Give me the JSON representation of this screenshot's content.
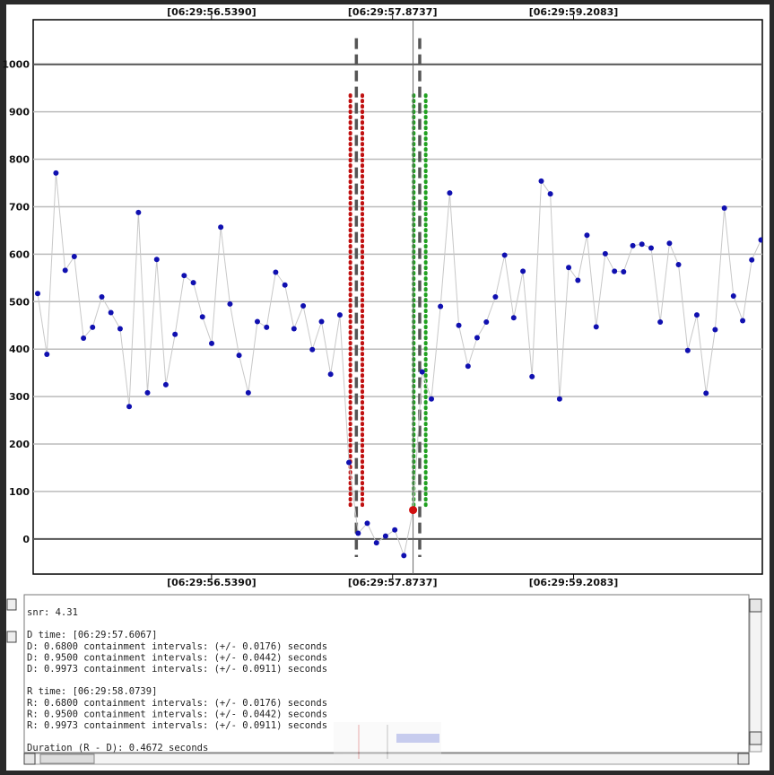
{
  "chart_data": {
    "type": "line",
    "x": [
      55.257,
      55.325,
      55.392,
      55.46,
      55.527,
      55.595,
      55.662,
      55.73,
      55.797,
      55.865,
      55.932,
      56.0,
      56.067,
      56.135,
      56.202,
      56.27,
      56.337,
      56.405,
      56.472,
      56.54,
      56.607,
      56.675,
      56.742,
      56.81,
      56.877,
      56.945,
      57.012,
      57.08,
      57.147,
      57.215,
      57.282,
      57.35,
      57.417,
      57.485,
      57.552,
      57.62,
      57.687,
      57.755,
      57.822,
      57.89,
      57.957,
      58.025,
      58.092,
      58.16,
      58.227,
      58.295,
      58.362,
      58.43,
      58.497,
      58.565,
      58.632,
      58.7,
      58.767,
      58.835,
      58.902,
      58.97,
      59.037,
      59.105,
      59.172,
      59.24,
      59.307,
      59.375,
      59.442,
      59.51,
      59.577,
      59.645,
      59.712,
      59.78,
      59.847,
      59.915,
      59.982,
      60.05,
      60.117,
      60.185,
      60.252,
      60.32,
      60.387,
      60.455,
      60.522,
      60.59
    ],
    "series": [
      {
        "color": "#1010b0",
        "line_color": "#c8c8c8",
        "values": [
          517,
          389,
          771,
          566,
          595,
          423,
          446,
          510,
          477,
          443,
          279,
          688,
          308,
          589,
          325,
          431,
          555,
          540,
          468,
          412,
          657,
          495,
          387,
          308,
          458,
          446,
          562,
          535,
          443,
          491,
          399,
          458,
          347,
          472,
          161,
          12,
          33,
          -8,
          6,
          19,
          -35,
          61,
          352,
          295,
          490,
          729,
          450,
          364,
          424,
          457,
          510,
          598,
          466,
          564,
          342,
          754,
          727,
          295,
          572,
          545,
          640,
          447,
          601,
          564,
          563,
          618,
          621,
          613,
          457,
          623,
          578,
          397,
          472,
          307,
          441,
          697,
          512,
          460,
          588,
          630
        ]
      }
    ],
    "highlight_index": 41,
    "highlight_color": "#d01010",
    "markers": [
      57.6067,
      58.0739
    ],
    "marker_color": "#555555",
    "intervals": [
      {
        "center": 57.6067,
        "half_width": 0.0442,
        "color": "#c01010"
      },
      {
        "center": 58.0739,
        "half_width": 0.0442,
        "color": "#20a020"
      }
    ],
    "cursor_x": 58.025,
    "xlim": [
      55.224,
      60.6
    ],
    "xticks": [
      {
        "value": 56.539,
        "label": "[06:29:56.5390]"
      },
      {
        "value": 57.8737,
        "label": "[06:29:57.8737]"
      },
      {
        "value": 59.2083,
        "label": "[06:29:59.2083]"
      }
    ],
    "ylim": [
      -74,
      1094
    ],
    "yticks": [
      0,
      100,
      200,
      300,
      400,
      500,
      600,
      700,
      800,
      900,
      1000
    ],
    "grid": true
  },
  "log": {
    "groups": [
      [
        "snr: 4.31"
      ],
      [
        "D time: [06:29:57.6067]",
        "D: 0.6800 containment intervals: (+/- 0.0176) seconds",
        "D: 0.9500 containment intervals: (+/- 0.0442) seconds",
        "D: 0.9973 containment intervals: (+/- 0.0911) seconds"
      ],
      [
        "R time: [06:29:58.0739]",
        "R: 0.6800 containment intervals: (+/- 0.0176) seconds",
        "R: 0.9500 containment intervals: (+/- 0.0442) seconds",
        "R: 0.9973 containment intervals: (+/- 0.0911) seconds"
      ],
      [
        "Duration (R - D): 0.4672 seconds"
      ]
    ]
  }
}
